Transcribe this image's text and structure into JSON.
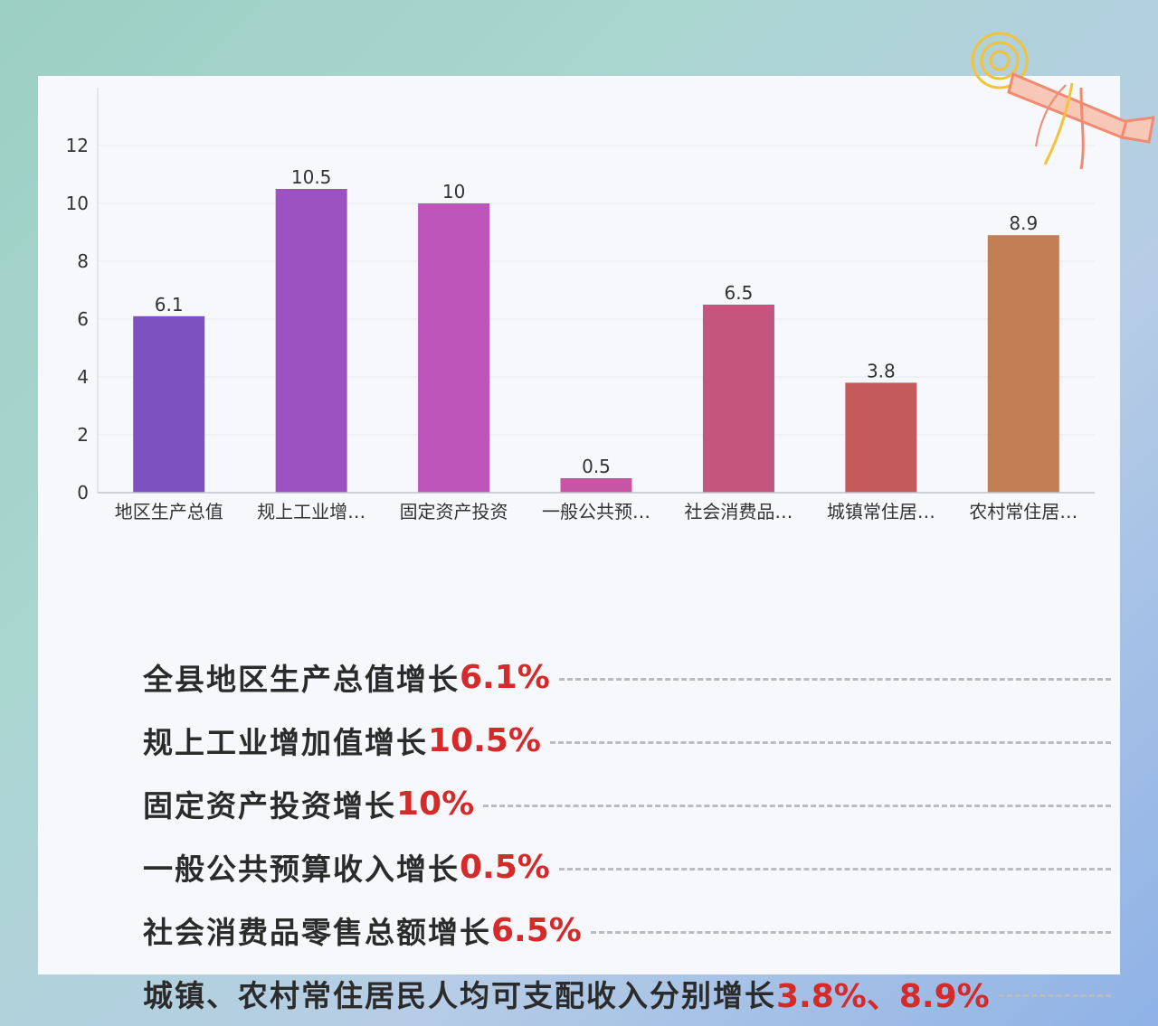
{
  "chart_data": {
    "type": "bar",
    "categories": [
      "地区生产总值",
      "规上工业增…",
      "固定资产投资",
      "一般公共预…",
      "社会消费品…",
      "城镇常住居…",
      "农村常住居…"
    ],
    "values": [
      6.1,
      10.5,
      10,
      0.5,
      6.5,
      3.8,
      8.9
    ],
    "value_labels": [
      "6.1",
      "10.5",
      "10",
      "0.5",
      "6.5",
      "3.8",
      "8.9"
    ],
    "bar_colors": [
      "#7b52bf",
      "#9d52c1",
      "#bd55bb",
      "#c754a4",
      "#c4557c",
      "#c45a5a",
      "#c27e54"
    ],
    "yticks": [
      "0",
      "2",
      "4",
      "6",
      "8",
      "10",
      "12"
    ],
    "ylim": [
      0,
      14
    ],
    "grid": true,
    "title": "",
    "xlabel": "",
    "ylabel": ""
  },
  "stats": [
    {
      "label": "全县地区生产总值增长",
      "value": "6.1%"
    },
    {
      "label": "规上工业增加值增长",
      "value": "10.5%"
    },
    {
      "label": "固定资产投资增长",
      "value": "10%"
    },
    {
      "label": "一般公共预算收入增长",
      "value": "0.5%"
    },
    {
      "label": "社会消费品零售总额增长",
      "value": "6.5%"
    },
    {
      "label": "城镇、农村常住居民人均可支配收入分别增长",
      "value": "3.8%、8.9%"
    }
  ],
  "colors": {
    "highlight": "#d42a2a",
    "text": "#2b2b2b",
    "dash": "#b9bcc2",
    "card": "#f6f8fb"
  },
  "decoration": "scroll-icon"
}
